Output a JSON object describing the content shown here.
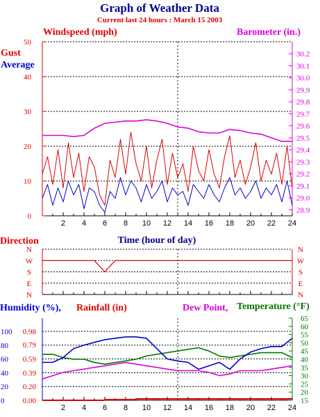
{
  "title": "Graph of Weather Data",
  "subtitle": "Current last 24 hours : March 15 2003",
  "colors": {
    "navy": "#00008b",
    "red": "#dd0000",
    "blue": "#0000cc",
    "magenta": "#dd00dd",
    "green": "#007700"
  },
  "chart_data": [
    {
      "type": "line",
      "panel": "wind-barometer",
      "labels": {
        "left": "Windspeed (mph)",
        "right": "Barometer (in.)",
        "gust": "Gust",
        "average": "Average",
        "x": "Time (hour of day)"
      },
      "x_range": [
        0,
        24
      ],
      "x_ticks": [
        "2",
        "4",
        "6",
        "8",
        "10",
        "12",
        "14",
        "16",
        "18",
        "20",
        "22",
        "24"
      ],
      "y_left_range": [
        0,
        50
      ],
      "y_left_ticks": [
        "0",
        "10",
        "20",
        "30",
        "40",
        "50"
      ],
      "y_right_range": [
        28.85,
        30.3
      ],
      "y_right_ticks": [
        "28.9",
        "29.0",
        "29.1",
        "29.2",
        "29.3",
        "29.4",
        "29.5",
        "29.6",
        "29.7",
        "29.8",
        "29.9",
        "30.0",
        "30.1",
        "30.2"
      ],
      "grid": true,
      "series": [
        {
          "name": "Gust",
          "axis": "left",
          "color": "red",
          "x": [
            0,
            0.5,
            1,
            1.5,
            2,
            2.5,
            3,
            3.5,
            4,
            4.5,
            5,
            5.5,
            6,
            6.5,
            7,
            7.5,
            8,
            8.5,
            9,
            9.5,
            10,
            10.5,
            11,
            11.5,
            12,
            12.5,
            13,
            13.5,
            14,
            14.5,
            15,
            15.5,
            16,
            16.5,
            17,
            17.5,
            18,
            18.5,
            19,
            19.5,
            20,
            20.5,
            21,
            21.5,
            22,
            22.5,
            23,
            23.5,
            24
          ],
          "y": [
            12,
            17,
            9,
            19,
            8,
            21,
            11,
            18,
            7,
            17,
            14,
            6,
            3,
            16,
            11,
            22,
            12,
            24,
            15,
            10,
            20,
            8,
            16,
            22,
            9,
            18,
            11,
            15,
            7,
            20,
            13,
            10,
            19,
            12,
            8,
            17,
            23,
            11,
            16,
            9,
            14,
            21,
            10,
            16,
            12,
            18,
            9,
            20,
            8
          ]
        },
        {
          "name": "Average",
          "axis": "left",
          "color": "blue",
          "x": [
            0,
            0.5,
            1,
            1.5,
            2,
            2.5,
            3,
            3.5,
            4,
            4.5,
            5,
            5.5,
            6,
            6.5,
            7,
            7.5,
            8,
            8.5,
            9,
            9.5,
            10,
            10.5,
            11,
            11.5,
            12,
            12.5,
            13,
            13.5,
            14,
            14.5,
            15,
            15.5,
            16,
            16.5,
            17,
            17.5,
            18,
            18.5,
            19,
            19.5,
            20,
            20.5,
            21,
            21.5,
            22,
            22.5,
            23,
            23.5,
            24
          ],
          "y": [
            5,
            9,
            3,
            8,
            4,
            10,
            6,
            9,
            2,
            8,
            7,
            3,
            1,
            7,
            5,
            11,
            6,
            10,
            8,
            4,
            9,
            5,
            7,
            10,
            4,
            8,
            6,
            7,
            3,
            9,
            7,
            5,
            9,
            6,
            4,
            8,
            11,
            6,
            8,
            5,
            7,
            10,
            5,
            8,
            6,
            9,
            4,
            10,
            3
          ]
        },
        {
          "name": "Barometer",
          "axis": "right",
          "color": "magenta",
          "x": [
            0,
            1,
            2,
            3,
            4,
            5,
            6,
            7,
            8,
            9,
            10,
            11,
            12,
            13,
            14,
            15,
            16,
            17,
            18,
            19,
            20,
            21,
            22,
            23,
            24
          ],
          "y": [
            29.52,
            29.52,
            29.52,
            29.51,
            29.52,
            29.58,
            29.62,
            29.63,
            29.64,
            29.64,
            29.65,
            29.64,
            29.62,
            29.59,
            29.58,
            29.55,
            29.54,
            29.54,
            29.57,
            29.56,
            29.54,
            29.53,
            29.5,
            29.47,
            29.47
          ]
        }
      ]
    },
    {
      "type": "line",
      "panel": "direction",
      "labels": {
        "left": "Direction"
      },
      "x_range": [
        0,
        24
      ],
      "y_ticks": [
        "N",
        "W",
        "S",
        "E",
        "N"
      ],
      "grid": true,
      "series": [
        {
          "name": "Direction",
          "color": "red",
          "x": [
            0,
            1,
            2,
            3,
            4,
            5,
            6,
            7,
            8,
            9,
            10,
            11,
            12,
            13,
            14,
            15,
            16,
            17,
            18,
            19,
            20,
            21,
            22,
            23,
            24
          ],
          "y": [
            "W",
            "W",
            "W",
            "W",
            "W",
            "W",
            "S",
            "W",
            "W",
            "W",
            "W",
            "W",
            "W",
            "W",
            "W",
            "W",
            "W",
            "W",
            "W",
            "W",
            "W",
            "W",
            "W",
            "W",
            "W"
          ]
        }
      ]
    },
    {
      "type": "line",
      "panel": "humidity-rain-temp",
      "labels": {
        "humidity": "Humidity (%),",
        "rainfall": "Rainfall (in)",
        "dewpoint": "Dew Point,",
        "temperature": "Temperature (°F)"
      },
      "x_range": [
        0,
        24
      ],
      "x_ticks": [
        "2",
        "4",
        "6",
        "8",
        "10",
        "12",
        "14",
        "16",
        "18",
        "20",
        "22",
        "24"
      ],
      "humidity_ticks": [
        "0",
        "20",
        "40",
        "60",
        "80",
        "100"
      ],
      "rainfall_ticks": [
        "0.00",
        "0.20",
        "0.39",
        "0.59",
        "0.79",
        "0.98"
      ],
      "temperature_range": [
        15,
        65
      ],
      "temperature_ticks": [
        "15",
        "20",
        "25",
        "30",
        "35",
        "40",
        "45",
        "50",
        "55",
        "60",
        "65"
      ],
      "grid": true,
      "series": [
        {
          "name": "Humidity",
          "axis": "humidity",
          "color": "blue",
          "x": [
            0,
            1,
            2,
            3,
            4,
            5,
            6,
            7,
            8,
            9,
            10,
            11,
            12,
            13,
            14,
            15,
            16,
            17,
            18,
            19,
            20,
            21,
            22,
            23,
            24
          ],
          "y": [
            55,
            55,
            62,
            75,
            80,
            84,
            88,
            90,
            92,
            92,
            90,
            75,
            60,
            57,
            55,
            45,
            50,
            55,
            45,
            60,
            70,
            75,
            78,
            78,
            90
          ]
        },
        {
          "name": "Rainfall",
          "axis": "rainfall",
          "color": "red",
          "x": [
            0,
            5.9,
            6.1,
            8.9,
            9.1,
            24
          ],
          "y": [
            0.0,
            0.0,
            0.01,
            0.01,
            0.02,
            0.02
          ]
        },
        {
          "name": "Dew Point",
          "axis": "temperature",
          "color": "magenta",
          "x": [
            0,
            1,
            2,
            3,
            4,
            5,
            6,
            7,
            8,
            9,
            10,
            11,
            12,
            13,
            14,
            15,
            16,
            17,
            18,
            19,
            20,
            21,
            22,
            23,
            24
          ],
          "y": [
            28,
            30,
            32,
            33,
            34,
            35,
            36,
            37,
            38,
            37,
            36,
            35,
            34,
            33,
            33,
            33,
            32,
            30,
            31,
            33,
            33,
            33,
            34,
            35,
            36
          ]
        },
        {
          "name": "Temperature",
          "axis": "temperature",
          "color": "green",
          "x": [
            0,
            1,
            2,
            3,
            4,
            5,
            6,
            7,
            8,
            9,
            10,
            11,
            12,
            13,
            14,
            15,
            16,
            17,
            18,
            19,
            20,
            21,
            22,
            23,
            24
          ],
          "y": [
            43,
            43,
            41,
            40,
            40,
            38,
            37,
            38,
            39,
            40,
            42,
            43,
            44,
            45,
            46,
            47,
            45,
            42,
            41,
            42,
            43,
            44,
            44,
            44,
            41
          ]
        }
      ]
    }
  ]
}
